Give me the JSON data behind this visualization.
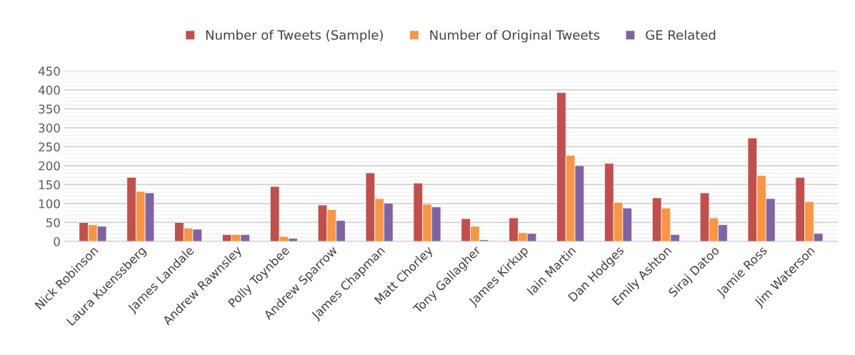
{
  "chart_data": {
    "type": "bar",
    "categories": [
      "Nick Robinson",
      "Laura Kuenssberg",
      "James Landale",
      "Andrew Rawnsley",
      "Polly Toynbee",
      "Andrew Sparrow",
      "James Chapman",
      "Matt Chorley",
      "Tony Gallagher",
      "James Kirkup",
      "Iain Martin",
      "Dan Hodges",
      "Emily Ashton",
      "Siraj Datoo",
      "Jamie Ross",
      "Jim Waterson"
    ],
    "series": [
      {
        "name": "Number of Tweets (Sample)",
        "color": "#c0504d",
        "values": [
          50,
          169,
          50,
          18,
          145,
          96,
          181,
          154,
          60,
          62,
          393,
          206,
          115,
          128,
          273,
          169
        ]
      },
      {
        "name": "Number of Original Tweets",
        "color": "#f79646",
        "values": [
          44,
          132,
          35,
          18,
          13,
          84,
          113,
          98,
          40,
          23,
          227,
          103,
          88,
          62,
          174,
          105
        ]
      },
      {
        "name": "GE Related",
        "color": "#8064a2",
        "values": [
          40,
          128,
          32,
          18,
          8,
          55,
          101,
          91,
          4,
          21,
          200,
          88,
          18,
          44,
          113,
          21
        ]
      }
    ],
    "ylim": [
      0,
      450
    ],
    "yticks": [
      0,
      50,
      100,
      150,
      200,
      250,
      300,
      350,
      400,
      450
    ],
    "grid": "y",
    "legend": "top"
  }
}
